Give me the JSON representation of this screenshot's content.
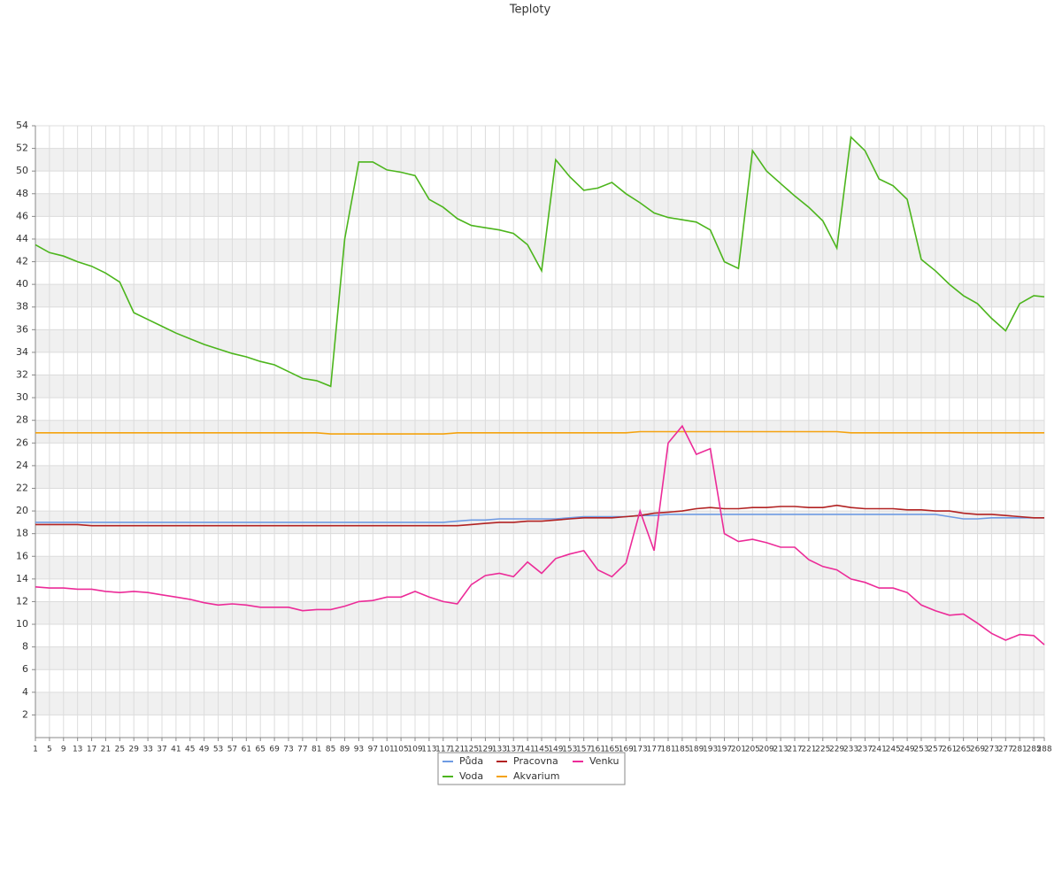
{
  "chart_data": {
    "type": "line",
    "title": "Teploty",
    "x": [
      1,
      5,
      9,
      13,
      17,
      21,
      25,
      29,
      33,
      37,
      41,
      45,
      49,
      53,
      57,
      61,
      65,
      69,
      73,
      77,
      81,
      85,
      89,
      93,
      97,
      101,
      105,
      109,
      113,
      117,
      121,
      125,
      129,
      133,
      137,
      141,
      145,
      149,
      153,
      157,
      161,
      165,
      169,
      173,
      177,
      181,
      185,
      189,
      193,
      197,
      201,
      205,
      209,
      213,
      217,
      221,
      225,
      229,
      233,
      237,
      241,
      245,
      249,
      253,
      257,
      261,
      265,
      269,
      273,
      277,
      281,
      285,
      288
    ],
    "xlim": [
      1,
      288
    ],
    "ylim": [
      0,
      54
    ],
    "yticks": [
      2,
      4,
      6,
      8,
      10,
      12,
      14,
      16,
      18,
      20,
      22,
      24,
      26,
      28,
      30,
      32,
      34,
      36,
      38,
      40,
      42,
      44,
      46,
      48,
      50,
      52,
      54
    ],
    "grid": true,
    "legend": "bottom",
    "series": [
      {
        "name": "Půda",
        "color": "#6f9be3",
        "values": [
          19.0,
          19.0,
          19.0,
          19.0,
          19.0,
          19.0,
          19.0,
          19.0,
          19.0,
          19.0,
          19.0,
          19.0,
          19.0,
          19.0,
          19.0,
          19.0,
          19.0,
          19.0,
          19.0,
          19.0,
          19.0,
          19.0,
          19.0,
          19.0,
          19.0,
          19.0,
          19.0,
          19.0,
          19.0,
          19.0,
          19.1,
          19.2,
          19.2,
          19.3,
          19.3,
          19.3,
          19.3,
          19.3,
          19.4,
          19.5,
          19.5,
          19.5,
          19.5,
          19.6,
          19.6,
          19.7,
          19.7,
          19.7,
          19.7,
          19.7,
          19.7,
          19.7,
          19.7,
          19.7,
          19.7,
          19.7,
          19.7,
          19.7,
          19.7,
          19.7,
          19.7,
          19.7,
          19.7,
          19.7,
          19.7,
          19.5,
          19.3,
          19.3,
          19.4,
          19.4,
          19.4,
          19.4,
          19.4
        ]
      },
      {
        "name": "Voda",
        "color": "#4cb51c",
        "values": [
          43.5,
          42.8,
          42.5,
          42.0,
          41.6,
          41.0,
          40.2,
          37.5,
          36.9,
          36.3,
          35.7,
          35.2,
          34.7,
          34.3,
          33.9,
          33.6,
          33.2,
          32.9,
          32.3,
          31.7,
          31.5,
          31.0,
          44.0,
          50.8,
          50.8,
          50.1,
          49.9,
          49.6,
          47.5,
          46.8,
          45.8,
          45.2,
          45.0,
          44.8,
          44.5,
          43.5,
          41.2,
          51.0,
          49.5,
          48.3,
          48.5,
          49.0,
          48.0,
          47.2,
          46.3,
          45.9,
          45.7,
          45.5,
          44.8,
          42.0,
          41.4,
          51.8,
          50.0,
          48.9,
          47.8,
          46.8,
          45.6,
          43.2,
          53.0,
          51.8,
          49.3,
          48.7,
          47.5,
          42.2,
          41.2,
          40.0,
          39.0,
          38.3,
          37.0,
          35.9,
          38.3,
          39.0,
          38.9
        ]
      },
      {
        "name": "Pracovna",
        "color": "#b22222",
        "values": [
          18.8,
          18.8,
          18.8,
          18.8,
          18.7,
          18.7,
          18.7,
          18.7,
          18.7,
          18.7,
          18.7,
          18.7,
          18.7,
          18.7,
          18.7,
          18.7,
          18.7,
          18.7,
          18.7,
          18.7,
          18.7,
          18.7,
          18.7,
          18.7,
          18.7,
          18.7,
          18.7,
          18.7,
          18.7,
          18.7,
          18.7,
          18.8,
          18.9,
          19.0,
          19.0,
          19.1,
          19.1,
          19.2,
          19.3,
          19.4,
          19.4,
          19.4,
          19.5,
          19.6,
          19.8,
          19.9,
          20.0,
          20.2,
          20.3,
          20.2,
          20.2,
          20.3,
          20.3,
          20.4,
          20.4,
          20.3,
          20.3,
          20.5,
          20.3,
          20.2,
          20.2,
          20.2,
          20.1,
          20.1,
          20.0,
          20.0,
          19.8,
          19.7,
          19.7,
          19.6,
          19.5,
          19.4,
          19.4
        ]
      },
      {
        "name": "Akvarium",
        "color": "#f4a20e",
        "values": [
          26.9,
          26.9,
          26.9,
          26.9,
          26.9,
          26.9,
          26.9,
          26.9,
          26.9,
          26.9,
          26.9,
          26.9,
          26.9,
          26.9,
          26.9,
          26.9,
          26.9,
          26.9,
          26.9,
          26.9,
          26.9,
          26.8,
          26.8,
          26.8,
          26.8,
          26.8,
          26.8,
          26.8,
          26.8,
          26.8,
          26.9,
          26.9,
          26.9,
          26.9,
          26.9,
          26.9,
          26.9,
          26.9,
          26.9,
          26.9,
          26.9,
          26.9,
          26.9,
          27.0,
          27.0,
          27.0,
          27.0,
          27.0,
          27.0,
          27.0,
          27.0,
          27.0,
          27.0,
          27.0,
          27.0,
          27.0,
          27.0,
          27.0,
          26.9,
          26.9,
          26.9,
          26.9,
          26.9,
          26.9,
          26.9,
          26.9,
          26.9,
          26.9,
          26.9,
          26.9,
          26.9,
          26.9,
          26.9
        ]
      },
      {
        "name": "Venku",
        "color": "#ec2b98",
        "values": [
          13.3,
          13.2,
          13.2,
          13.1,
          13.1,
          12.9,
          12.8,
          12.9,
          12.8,
          12.6,
          12.4,
          12.2,
          11.9,
          11.7,
          11.8,
          11.7,
          11.5,
          11.5,
          11.5,
          11.2,
          11.3,
          11.3,
          11.6,
          12.0,
          12.1,
          12.4,
          12.4,
          12.9,
          12.4,
          12.0,
          11.8,
          13.5,
          14.3,
          14.5,
          14.2,
          15.5,
          14.5,
          15.8,
          16.2,
          16.5,
          14.8,
          14.2,
          15.4,
          20.0,
          16.5,
          26.0,
          27.5,
          25.0,
          25.5,
          18.0,
          17.3,
          17.5,
          17.2,
          16.8,
          16.8,
          15.7,
          15.1,
          14.8,
          14.0,
          13.7,
          13.2,
          13.2,
          12.8,
          11.7,
          11.2,
          10.8,
          10.9,
          10.1,
          9.2,
          8.6,
          9.1,
          9.0,
          8.2
        ]
      }
    ]
  }
}
